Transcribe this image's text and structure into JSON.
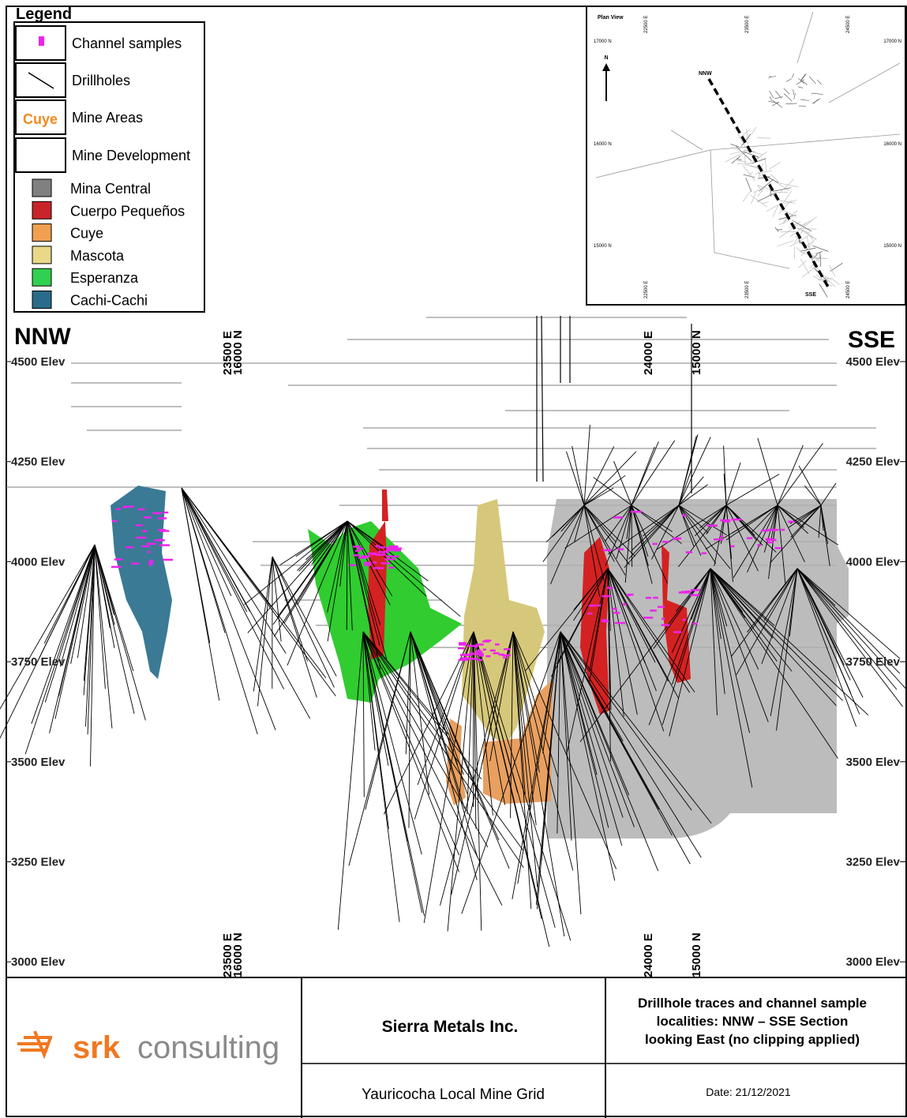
{
  "legend": {
    "title": "Legend",
    "symbols": [
      {
        "label": "Channel samples"
      },
      {
        "label": "Drillholes"
      },
      {
        "icon": "Cuye",
        "label": "Mine Areas"
      },
      {
        "label": "Mine Development"
      }
    ],
    "areas": [
      {
        "label": "Mina Central",
        "color": "#808080"
      },
      {
        "label": "Cuerpo Pequeños",
        "color": "#c8242a"
      },
      {
        "label": "Cuye",
        "color": "#f0a050"
      },
      {
        "label": "Mascota",
        "color": "#e8d888"
      },
      {
        "label": "Esperanza",
        "color": "#30d050"
      },
      {
        "label": "Cachi-Cachi",
        "color": "#2a6a8a"
      }
    ]
  },
  "plan_view": {
    "title": "Plan View",
    "northings": [
      "17000 N",
      "16000 N",
      "15000 N"
    ],
    "eastings": [
      "22500 E",
      "23500 E",
      "24500 E"
    ],
    "north_arrow": "N",
    "section_start": "NNW",
    "section_end": "SSE"
  },
  "section": {
    "left_label": "NNW",
    "right_label": "SSE",
    "elevations": [
      "4500 Elev",
      "4250 Elev",
      "4000 Elev",
      "3750 Elev",
      "3500 Elev",
      "3250 Elev",
      "3000 Elev"
    ],
    "grid_labels": [
      "23500 E",
      "16000 N",
      "24000 E",
      "15000 N"
    ]
  },
  "footer": {
    "logo_bold": "srk",
    "logo_text": "consulting",
    "company": "Sierra Metals Inc.",
    "grid": "Yauricocha Local Mine Grid",
    "description": [
      "Drillhole traces and channel sample",
      "localities: NNW – SSE Section",
      "looking East (no clipping applied)"
    ],
    "date": "Date: 21/12/2021"
  }
}
